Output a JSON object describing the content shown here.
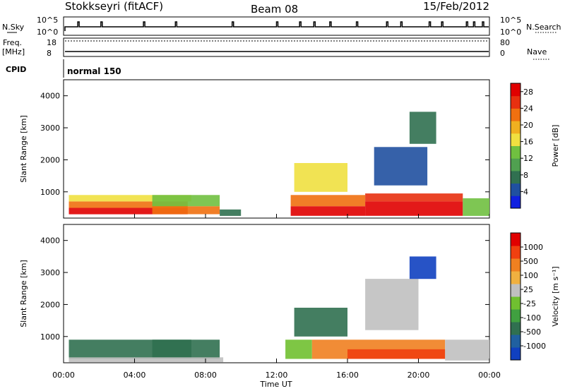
{
  "header": {
    "station": "Stokkseyri (fitACF)",
    "beam": "Beam 08",
    "date": "15/Feb/2012"
  },
  "strip": {
    "nsky_label": "N.Sky",
    "nsky_ticks": [
      "10^5",
      "10^0"
    ],
    "nsearch_label": "N.Search",
    "nsearch_ticks": [
      "10^5",
      "10^0"
    ],
    "freq_label": "Freq.",
    "freq_unit": "[MHz]",
    "freq_ticks": [
      "18",
      "8"
    ],
    "nave_label": "Nave",
    "nave_ticks": [
      "80",
      "0"
    ],
    "cpid_label": "CPID",
    "cpid_value": "normal 150"
  },
  "chart_data": [
    {
      "type": "heatmap",
      "name": "power",
      "ylabel": "Slant Range [km]",
      "xlabel": "Time UT",
      "x_ticks": [
        "00:00",
        "04:00",
        "08:00",
        "12:00",
        "16:00",
        "20:00",
        "00:00"
      ],
      "y_ticks": [
        "1000",
        "2000",
        "3000",
        "4000"
      ],
      "xlim_hours": [
        0,
        24
      ],
      "ylim_km": [
        180,
        4500
      ],
      "colorbar": {
        "label": "Power [dB]",
        "ticks": [
          "4",
          "8",
          "12",
          "16",
          "20",
          "24",
          "28"
        ],
        "colors": [
          "#1020e0",
          "#2050a0",
          "#307050",
          "#50a050",
          "#70c040",
          "#f0e040",
          "#f0b020",
          "#f07010",
          "#e83010",
          "#e00000"
        ]
      },
      "blocks": [
        {
          "t0": 0.3,
          "t1": 7.0,
          "r0": 300,
          "r1": 500,
          "level": 9
        },
        {
          "t0": 0.3,
          "t1": 7.0,
          "r0": 500,
          "r1": 700,
          "level": 7
        },
        {
          "t0": 0.3,
          "t1": 7.2,
          "r0": 700,
          "r1": 900,
          "level": 5
        },
        {
          "t0": 5.0,
          "t1": 8.8,
          "r0": 300,
          "r1": 550,
          "level": 7
        },
        {
          "t0": 5.0,
          "t1": 8.8,
          "r0": 550,
          "r1": 900,
          "level": 4
        },
        {
          "t0": 8.8,
          "t1": 10.0,
          "r0": 250,
          "r1": 450,
          "level": 2
        },
        {
          "t0": 12.8,
          "t1": 17.0,
          "r0": 250,
          "r1": 550,
          "level": 9
        },
        {
          "t0": 12.8,
          "t1": 17.0,
          "r0": 550,
          "r1": 900,
          "level": 7
        },
        {
          "t0": 17.0,
          "t1": 22.5,
          "r0": 250,
          "r1": 700,
          "level": 9
        },
        {
          "t0": 17.0,
          "t1": 22.5,
          "r0": 700,
          "r1": 950,
          "level": 8
        },
        {
          "t0": 22.5,
          "t1": 24.0,
          "r0": 250,
          "r1": 800,
          "level": 4
        },
        {
          "t0": 17.5,
          "t1": 20.5,
          "r0": 1200,
          "r1": 2400,
          "level": 1
        },
        {
          "t0": 19.5,
          "t1": 21.0,
          "r0": 2500,
          "r1": 3500,
          "level": 2
        },
        {
          "t0": 13.0,
          "t1": 16.0,
          "r0": 1000,
          "r1": 1900,
          "level": 5
        }
      ]
    },
    {
      "type": "heatmap",
      "name": "velocity",
      "ylabel": "Slant Range [km]",
      "xlabel": "Time UT",
      "x_ticks": [
        "00:00",
        "04:00",
        "08:00",
        "12:00",
        "16:00",
        "20:00",
        "00:00"
      ],
      "y_ticks": [
        "1000",
        "2000",
        "3000",
        "4000"
      ],
      "xlim_hours": [
        0,
        24
      ],
      "ylim_km": [
        180,
        4500
      ],
      "colorbar": {
        "label": "Velocity [m s⁻¹]",
        "ticks": [
          "1000",
          "500",
          "100",
          "25",
          "-25",
          "-100",
          "-500",
          "-1000"
        ],
        "colors": [
          "#1040c0",
          "#2060a0",
          "#307050",
          "#40a040",
          "#70c030",
          "#c0c0c0",
          "#f0b040",
          "#f08020",
          "#f04010",
          "#e00000"
        ]
      },
      "blocks": [
        {
          "t0": 0.3,
          "t1": 7.2,
          "r0": 300,
          "r1": 900,
          "level": 2
        },
        {
          "t0": 5.0,
          "t1": 8.8,
          "r0": 300,
          "r1": 900,
          "level": 2
        },
        {
          "t0": 0.3,
          "t1": 9.0,
          "r0": 200,
          "r1": 350,
          "level": 5
        },
        {
          "t0": 12.5,
          "t1": 14.0,
          "r0": 300,
          "r1": 900,
          "level": 4
        },
        {
          "t0": 14.0,
          "t1": 21.5,
          "r0": 300,
          "r1": 900,
          "level": 7
        },
        {
          "t0": 16.0,
          "t1": 21.5,
          "r0": 300,
          "r1": 600,
          "level": 8
        },
        {
          "t0": 21.5,
          "t1": 24.0,
          "r0": 250,
          "r1": 900,
          "level": 5
        },
        {
          "t0": 17.0,
          "t1": 20.0,
          "r0": 1200,
          "r1": 2800,
          "level": 5
        },
        {
          "t0": 19.5,
          "t1": 21.0,
          "r0": 2800,
          "r1": 3500,
          "level": 0
        },
        {
          "t0": 13.0,
          "t1": 16.0,
          "r0": 1000,
          "r1": 1900,
          "level": 2
        }
      ]
    }
  ]
}
